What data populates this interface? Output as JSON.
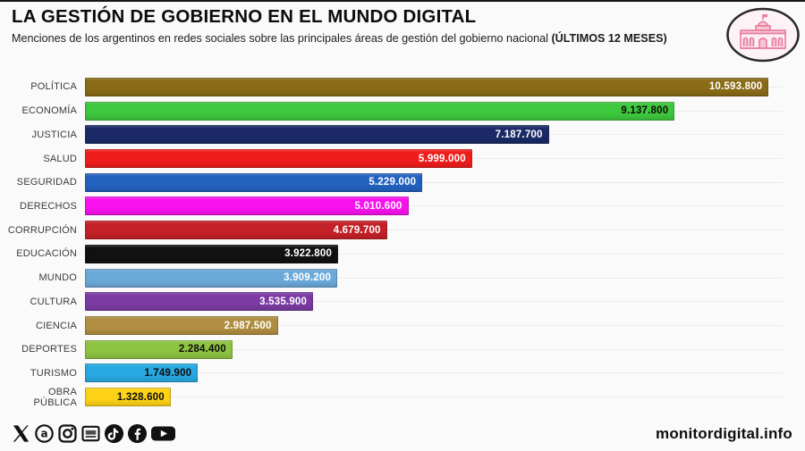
{
  "header": {
    "title": "LA GESTIÓN DE GOBIERNO EN EL MUNDO DIGITAL",
    "subtitle": "Menciones de los argentinos en redes sociales sobre las principales áreas de gestión del gobierno nacional ",
    "subtitle_bold": "(ÚLTIMOS 12 MESES)",
    "logo_name": "casa-rosada-logo",
    "logo_colors": {
      "ring": "#2a2a2a",
      "building_pink": "#e87b9c",
      "fill": "#fdf3f6"
    }
  },
  "chart_data": {
    "type": "bar",
    "orientation": "horizontal",
    "title": "LA GESTIÓN DE GOBIERNO EN EL MUNDO DIGITAL",
    "xlabel": "",
    "ylabel": "",
    "xlim": [
      0,
      10800000
    ],
    "grid": "faint horizontal row track lines",
    "legend": "none",
    "categories": [
      "POLÍTICA",
      "ECONOMÍA",
      "JUSTICIA",
      "SALUD",
      "SEGURIDAD",
      "DERECHOS",
      "CORRUPCIÓN",
      "EDUCACIÓN",
      "MUNDO",
      "CULTURA",
      "CIENCIA",
      "DEPORTES",
      "TURISMO",
      "OBRA PÚBLICA"
    ],
    "values": [
      10593800,
      9137800,
      7187700,
      5999000,
      5229000,
      5010600,
      4679700,
      3922800,
      3909200,
      3535900,
      2987500,
      2284400,
      1749900,
      1328600
    ],
    "value_labels": [
      "10.593.800",
      "9.137.800",
      "7.187.700",
      "5.999.000",
      "5.229.000",
      "5.010.600",
      "4.679.700",
      "3.922.800",
      "3.909.200",
      "3.535.900",
      "2.987.500",
      "2.284.400",
      "1.749.900",
      "1.328.600"
    ],
    "bar_colors": [
      "#8a6b17",
      "#3ec83e",
      "#1b2a67",
      "#f01d1d",
      "#2362bf",
      "#f912ee",
      "#c32127",
      "#111111",
      "#6ba9d9",
      "#7b3ba3",
      "#b18e41",
      "#8ec441",
      "#28a9e1",
      "#fdd216"
    ],
    "value_label_colors": [
      "#ffffff",
      "#0c0c0c",
      "#ffffff",
      "#ffffff",
      "#ffffff",
      "#ffffff",
      "#ffffff",
      "#ffffff",
      "#ffffff",
      "#ffffff",
      "#ffffff",
      "#0c0c0c",
      "#0c0c0c",
      "#0c0c0c"
    ]
  },
  "footer": {
    "social_icons": [
      "x-icon",
      "threads-icon",
      "instagram-icon",
      "news-icon",
      "tiktok-icon",
      "facebook-icon",
      "youtube-icon"
    ],
    "website": "monitordigital.info"
  }
}
